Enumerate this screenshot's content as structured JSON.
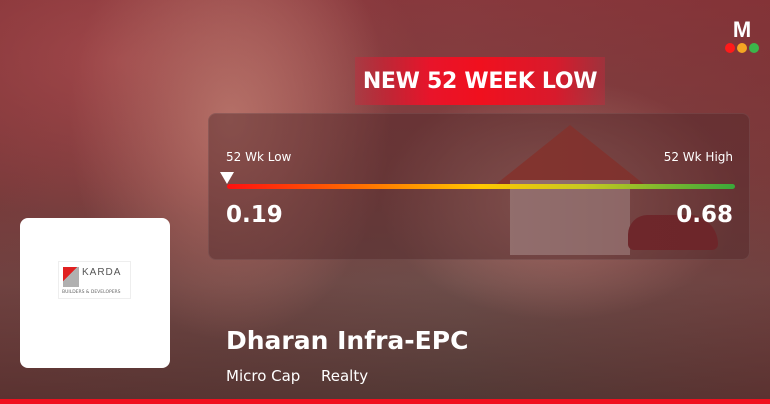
{
  "brand": {
    "logo_letter": "M",
    "dot_colors": [
      "#ff1a1a",
      "#f5a623",
      "#3bb54a"
    ]
  },
  "banner": {
    "text": "NEW 52 WEEK LOW",
    "color": "#f0101e"
  },
  "range": {
    "low_label": "52 Wk Low",
    "high_label": "52 Wk High",
    "low_value": "0.19",
    "high_value": "0.68",
    "current_position_fraction": 0
  },
  "company": {
    "name": "Dharan Infra-EPC",
    "logo_text": "KARDA",
    "logo_subtext": "BUILDERS & DEVELOPERS",
    "market_cap": "Micro Cap",
    "sector": "Realty"
  }
}
